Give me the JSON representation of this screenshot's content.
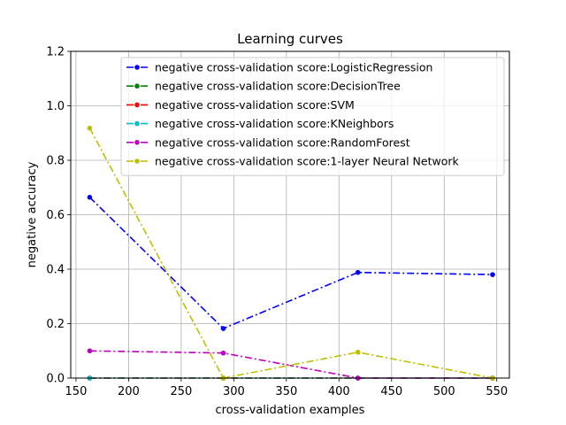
{
  "chart_data": {
    "type": "line",
    "title": "Learning curves",
    "xlabel": "cross-validation examples",
    "ylabel": "negative accuracy",
    "xlim": [
      145,
      562
    ],
    "ylim": [
      0,
      1.2
    ],
    "xticks": [
      150,
      200,
      250,
      300,
      350,
      400,
      450,
      500,
      550
    ],
    "yticks": [
      0.0,
      0.2,
      0.4,
      0.6,
      0.8,
      1.0,
      1.2
    ],
    "grid": true,
    "legend_position": "top-right",
    "x": [
      163,
      290,
      418,
      546
    ],
    "series": [
      {
        "name": "negative cross-validation score:LogisticRegression",
        "color": "#0000ff",
        "values": [
          0.664,
          0.182,
          0.388,
          0.38
        ]
      },
      {
        "name": "negative cross-validation score:DecisionTree",
        "color": "#008000",
        "values": [
          0.0,
          0.0,
          0.0,
          0.0
        ]
      },
      {
        "name": "negative cross-validation score:SVM",
        "color": "#ff0000",
        "values": [
          0.0,
          0.0,
          0.0,
          0.0
        ]
      },
      {
        "name": "negative cross-validation score:KNeighbors",
        "color": "#00bfbf",
        "values": [
          0.0,
          0.0,
          0.0,
          0.0
        ]
      },
      {
        "name": "negative cross-validation score:RandomForest",
        "color": "#bf00bf",
        "values": [
          0.1,
          0.092,
          0.0,
          0.0
        ]
      },
      {
        "name": "negative cross-validation score:1-layer Neural Network",
        "color": "#bfbf00",
        "values": [
          0.918,
          0.0,
          0.095,
          0.0
        ]
      }
    ]
  }
}
